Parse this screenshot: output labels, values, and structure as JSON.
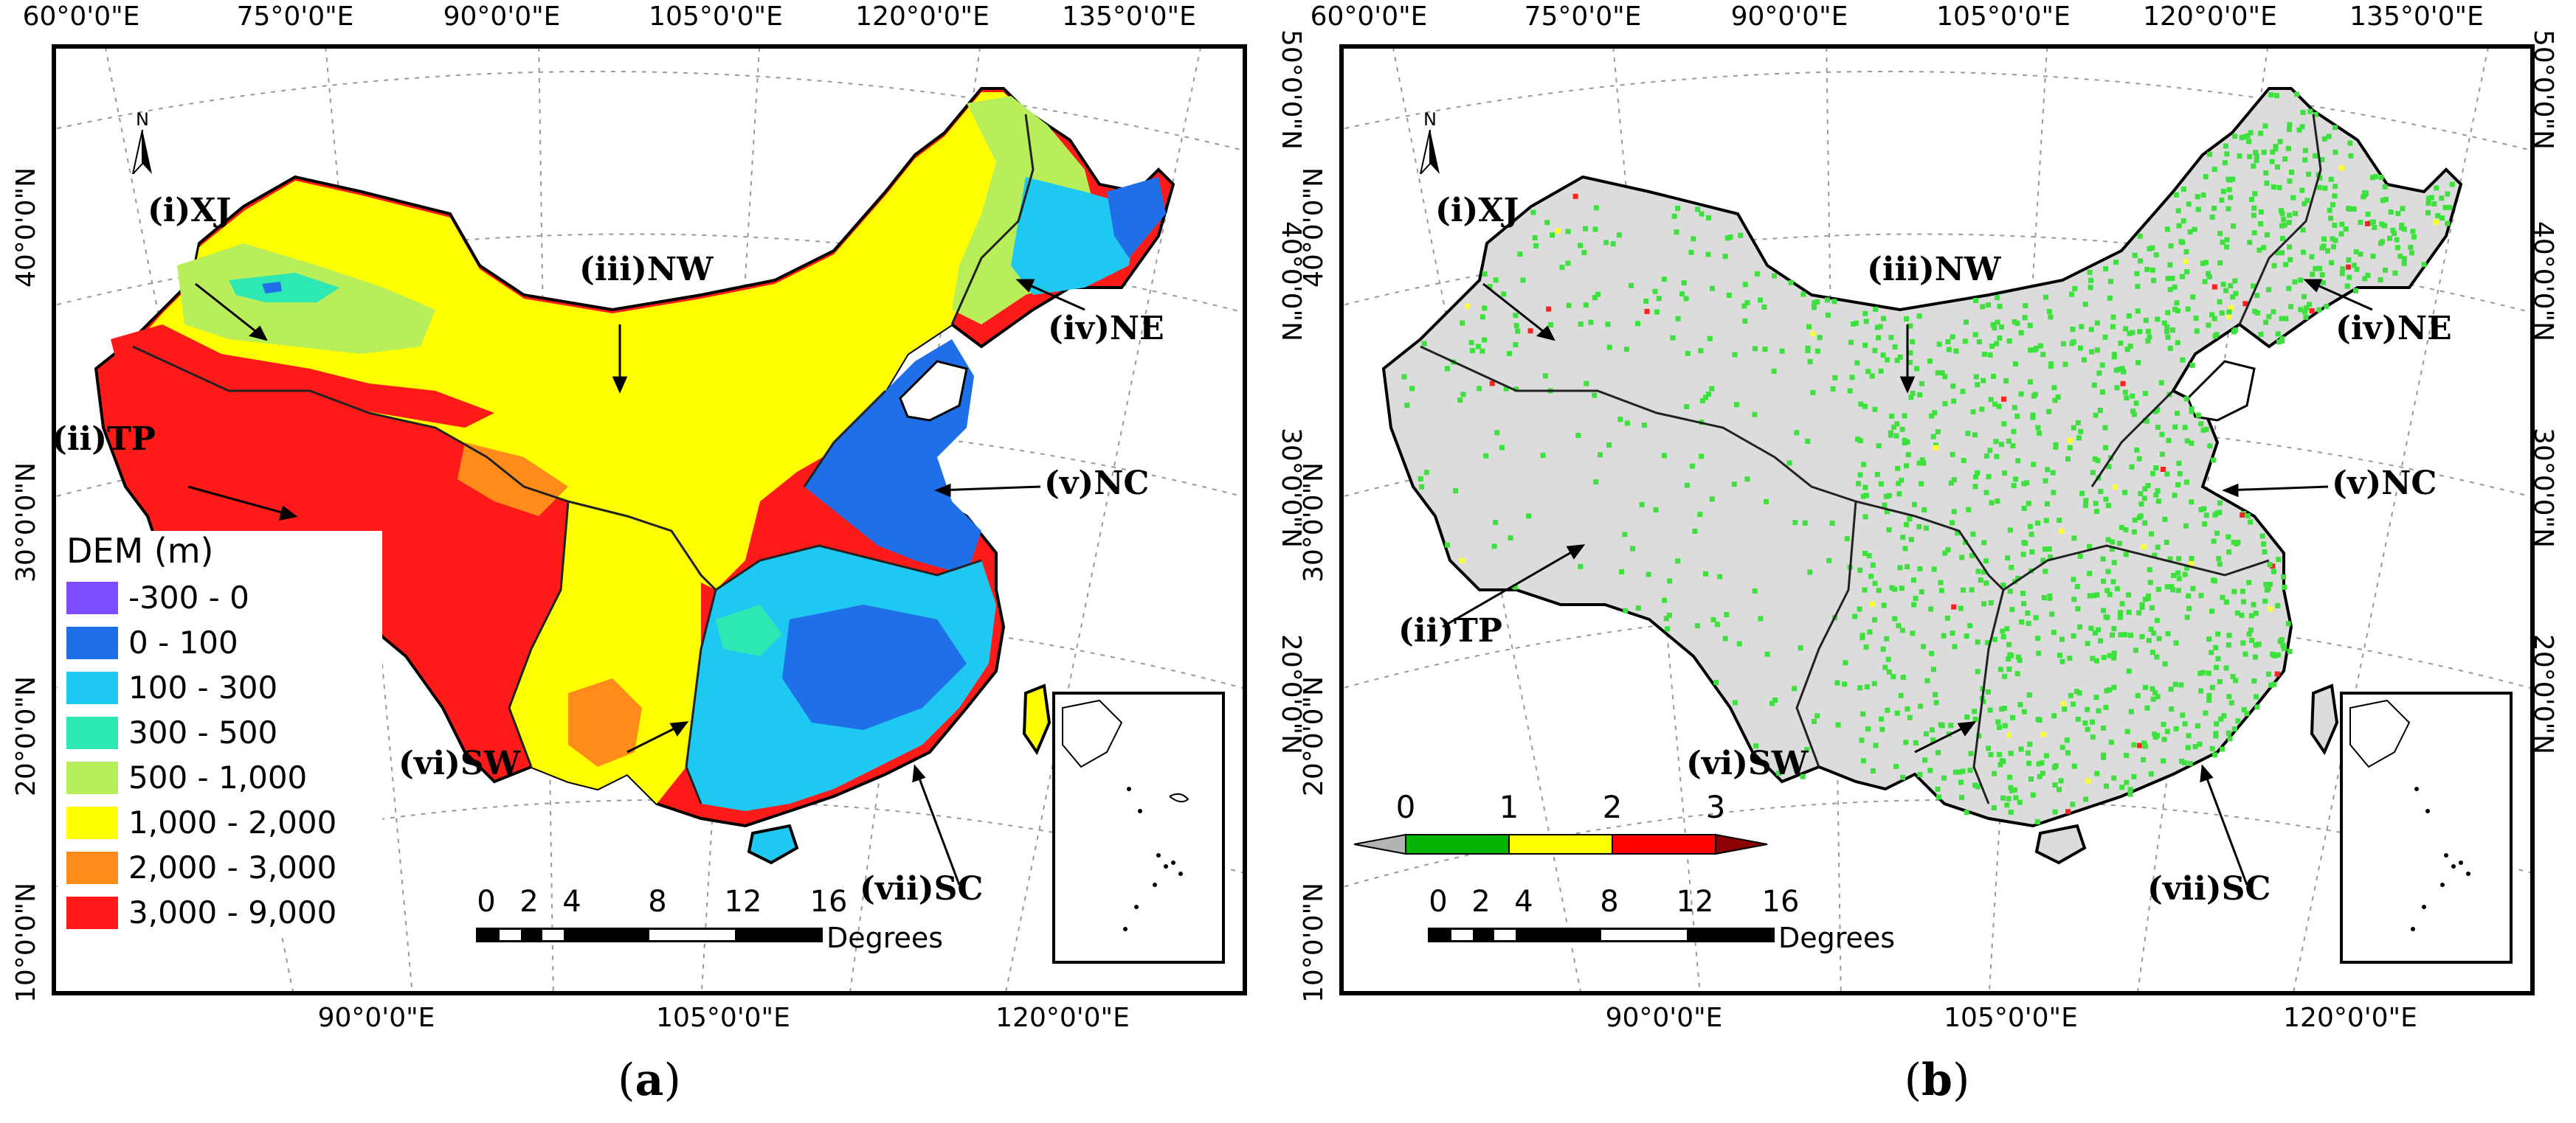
{
  "axes": {
    "top_lon": [
      "60°0'0\"E",
      "75°0'0\"E",
      "90°0'0\"E",
      "105°0'0\"E",
      "120°0'0\"E",
      "135°0'0\"E"
    ],
    "bottom_lon": [
      "90°0'0\"E",
      "105°0'0\"E",
      "120°0'0\"E"
    ],
    "left_lat": [
      "40°0'0\"N",
      "30°0'0\"N",
      "20°0'0\"N",
      "10°0'0\"N"
    ],
    "right_lat": [
      "50°0'0\"N",
      "40°0'0\"N",
      "30°0'0\"N",
      "20°0'0\"N"
    ]
  },
  "north_arrow": "N",
  "regions": {
    "xj": "(i)XJ",
    "tp": "(ii)TP",
    "nw": "(iii)NW",
    "ne": "(iv)NE",
    "nc": "(v)NC",
    "sw": "(vi)SW",
    "sc": "(vii)SC"
  },
  "panel_a": {
    "caption_open": "(",
    "caption_letter": "a",
    "caption_close": ")",
    "legend": {
      "title": "DEM (m)",
      "items": [
        {
          "label": "-300 - 0",
          "color": "#7b4dff"
        },
        {
          "label": "0 - 100",
          "color": "#1e6fe8"
        },
        {
          "label": "100 - 300",
          "color": "#1ec8f0"
        },
        {
          "label": "300 - 500",
          "color": "#2ee8b4"
        },
        {
          "label": "500 - 1,000",
          "color": "#b8ee5a"
        },
        {
          "label": "1,000 - 2,000",
          "color": "#ffff00"
        },
        {
          "label": "2,000 - 3,000",
          "color": "#ff8c1a"
        },
        {
          "label": "3,000 - 9,000",
          "color": "#ff1a1a"
        }
      ]
    }
  },
  "panel_b": {
    "caption_open": "(",
    "caption_letter": "b",
    "caption_close": ")",
    "colorbar": {
      "ticks": [
        "0",
        "1",
        "2",
        "3"
      ],
      "colors": [
        "#b4b4b4",
        "#00b400",
        "#ffff00",
        "#ff0000",
        "#8b0000"
      ]
    }
  },
  "scale": {
    "ticks": [
      "0",
      "2",
      "4",
      "8",
      "12",
      "16"
    ],
    "unit": "Degrees"
  },
  "colors": {
    "base_land": "#dcdcdc",
    "station_green": "#3de03d",
    "station_red": "#ff2020",
    "station_yellow": "#ffff30"
  }
}
